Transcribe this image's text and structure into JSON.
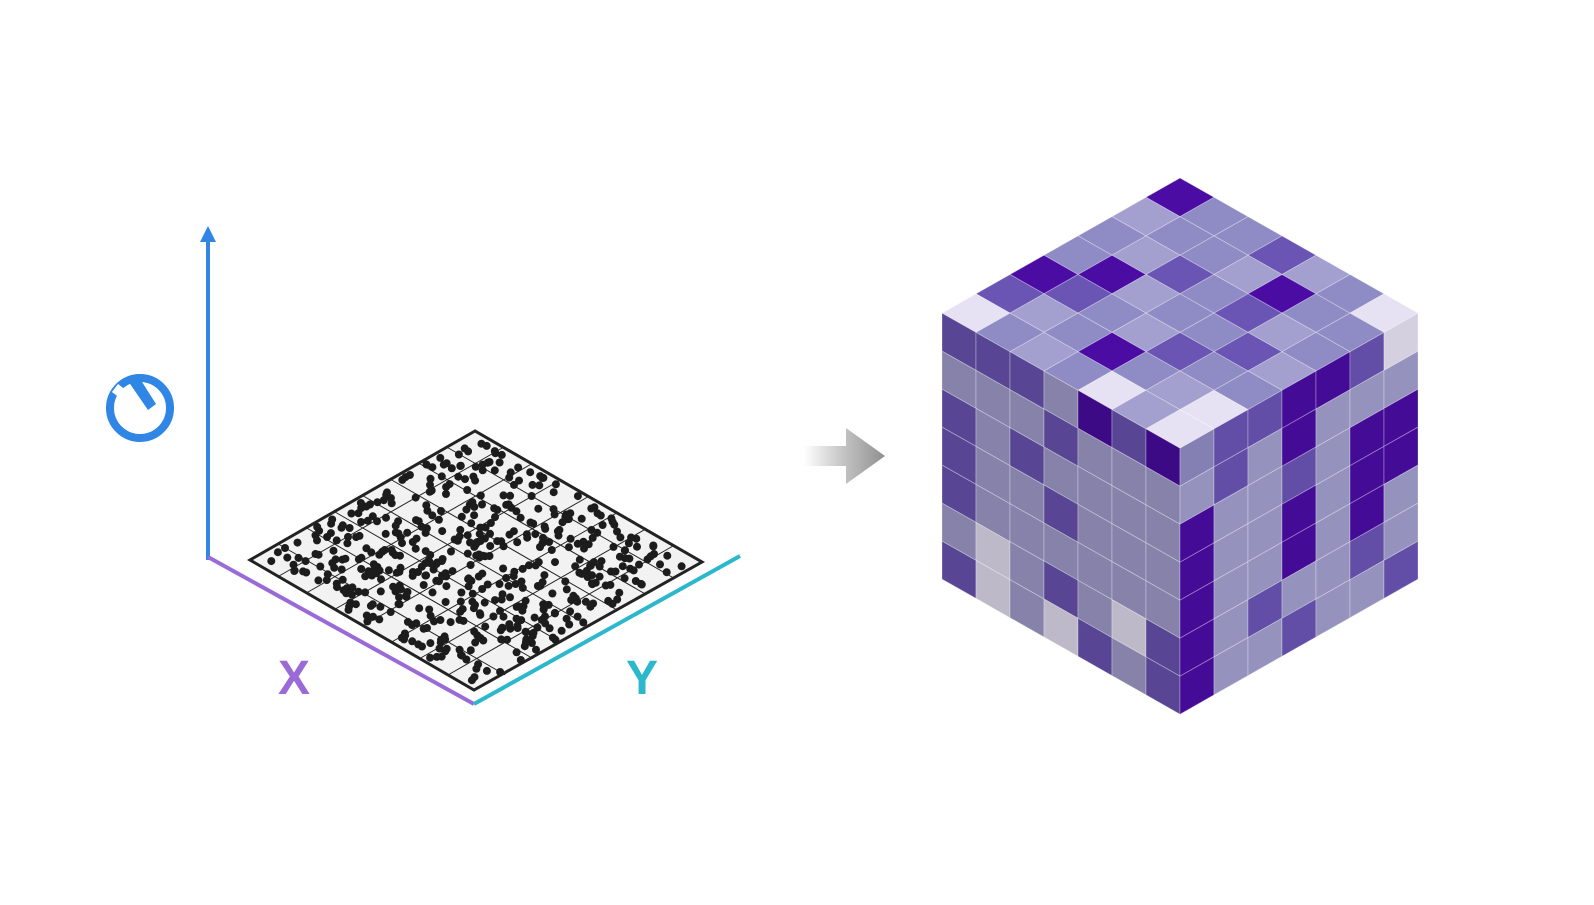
{
  "diagram": {
    "axes": {
      "x_label": "X",
      "y_label": "Y",
      "time_icon": "clock-icon"
    },
    "arrow_icon": "right-arrow-icon",
    "colors": {
      "time_axis": "#2f86e4",
      "x_axis": "#9a6bd6",
      "y_axis": "#2db7cc",
      "point": "#1c1c1c",
      "grid": "#222222",
      "plane_fill": "#f2f2f2",
      "cube_palette": [
        "#e6e2f4",
        "#a39fcf",
        "#8f8bc4",
        "#6b55b4",
        "#4a0ca3"
      ]
    },
    "point_grid": {
      "cells": 8,
      "point_count": 520
    },
    "voxel_cube": {
      "size": 7,
      "top_face": [
        [
          4,
          2,
          2,
          3,
          1,
          2,
          0
        ],
        [
          1,
          2,
          2,
          1,
          4,
          2,
          2
        ],
        [
          2,
          1,
          3,
          2,
          3,
          1,
          2
        ],
        [
          2,
          4,
          1,
          2,
          2,
          3,
          1
        ],
        [
          4,
          3,
          2,
          1,
          3,
          2,
          2
        ],
        [
          3,
          1,
          2,
          4,
          2,
          1,
          0
        ],
        [
          0,
          2,
          1,
          2,
          0,
          1,
          0
        ]
      ],
      "left_face": [
        [
          3,
          3,
          3,
          1,
          4,
          3,
          4
        ],
        [
          1,
          1,
          1,
          3,
          1,
          1,
          1
        ],
        [
          3,
          1,
          3,
          1,
          1,
          1,
          1
        ],
        [
          3,
          1,
          1,
          3,
          1,
          1,
          1
        ],
        [
          3,
          1,
          1,
          1,
          1,
          1,
          1
        ],
        [
          1,
          0,
          1,
          3,
          1,
          0,
          3
        ],
        [
          3,
          0,
          1,
          0,
          3,
          1,
          3
        ]
      ],
      "right_face": [
        [
          2,
          3,
          3,
          4,
          4,
          3,
          0
        ],
        [
          1,
          3,
          1,
          4,
          1,
          1,
          1
        ],
        [
          4,
          1,
          1,
          3,
          1,
          4,
          4
        ],
        [
          4,
          1,
          1,
          4,
          1,
          4,
          4
        ],
        [
          4,
          1,
          1,
          4,
          1,
          4,
          1
        ],
        [
          4,
          1,
          3,
          1,
          1,
          3,
          1
        ],
        [
          4,
          1,
          1,
          3,
          1,
          1,
          3
        ]
      ]
    }
  }
}
